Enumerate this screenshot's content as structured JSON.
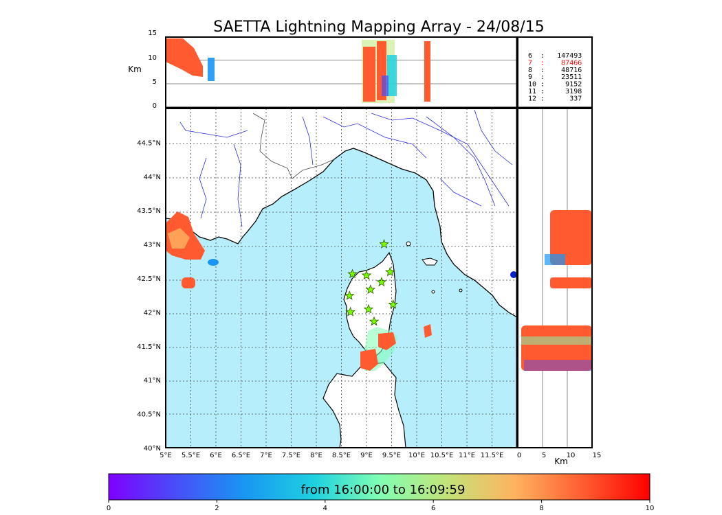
{
  "title": "SAETTA Lightning Mapping Array - 24/08/15",
  "colors": {
    "sea": "#b7eefc",
    "land": "#ffffff",
    "coast": "#000000",
    "rivers": "#2a2ad8",
    "borders": "#444444",
    "stars": "#7cfc00",
    "highlight": "#ff0000"
  },
  "top_panel": {
    "ylabel": "Km",
    "yticks": [
      "15",
      "10",
      "5",
      "0"
    ],
    "stats": [
      {
        "label": "6  :   147493",
        "highlight": false
      },
      {
        "label": "7  :    87466",
        "highlight": true
      },
      {
        "label": "8  :    48716",
        "highlight": false
      },
      {
        "label": "9  :    23511",
        "highlight": false
      },
      {
        "label": "10 :     9152",
        "highlight": false
      },
      {
        "label": "11 :     3198",
        "highlight": false
      },
      {
        "label": "12 :      337",
        "highlight": false
      }
    ]
  },
  "map": {
    "lon_ticks": [
      "5°E",
      "5.5°E",
      "6°E",
      "6.5°E",
      "7°E",
      "7.5°E",
      "8°E",
      "8.5°E",
      "9°E",
      "9.5°E",
      "10°E",
      "10.5°E",
      "11°E",
      "11.5°E"
    ],
    "lat_ticks": [
      "40°N",
      "40.5°N",
      "41°N",
      "41.5°N",
      "42°N",
      "42.5°N",
      "43°N",
      "43.5°N",
      "44°N",
      "44.5°N"
    ],
    "lon_range": [
      5.0,
      12.0
    ],
    "lat_range": [
      40.0,
      45.0
    ],
    "stations": [
      {
        "lon": 9.35,
        "lat": 43.0
      },
      {
        "lon": 8.72,
        "lat": 42.56
      },
      {
        "lon": 9.0,
        "lat": 42.54
      },
      {
        "lon": 9.47,
        "lat": 42.59
      },
      {
        "lon": 9.08,
        "lat": 42.33
      },
      {
        "lon": 9.3,
        "lat": 42.44
      },
      {
        "lon": 8.66,
        "lat": 42.24
      },
      {
        "lon": 9.53,
        "lat": 42.11
      },
      {
        "lon": 9.04,
        "lat": 42.04
      },
      {
        "lon": 8.68,
        "lat": 42.0
      },
      {
        "lon": 9.15,
        "lat": 41.86
      }
    ]
  },
  "right_panel": {
    "xlabel": "Km",
    "xticks": [
      "0",
      "5",
      "10",
      "15"
    ]
  },
  "colorbar": {
    "label": "from 16:00:00 to 16:09:59",
    "ticks": [
      "0",
      "2",
      "4",
      "6",
      "8",
      "10"
    ],
    "range": [
      0,
      10
    ]
  }
}
